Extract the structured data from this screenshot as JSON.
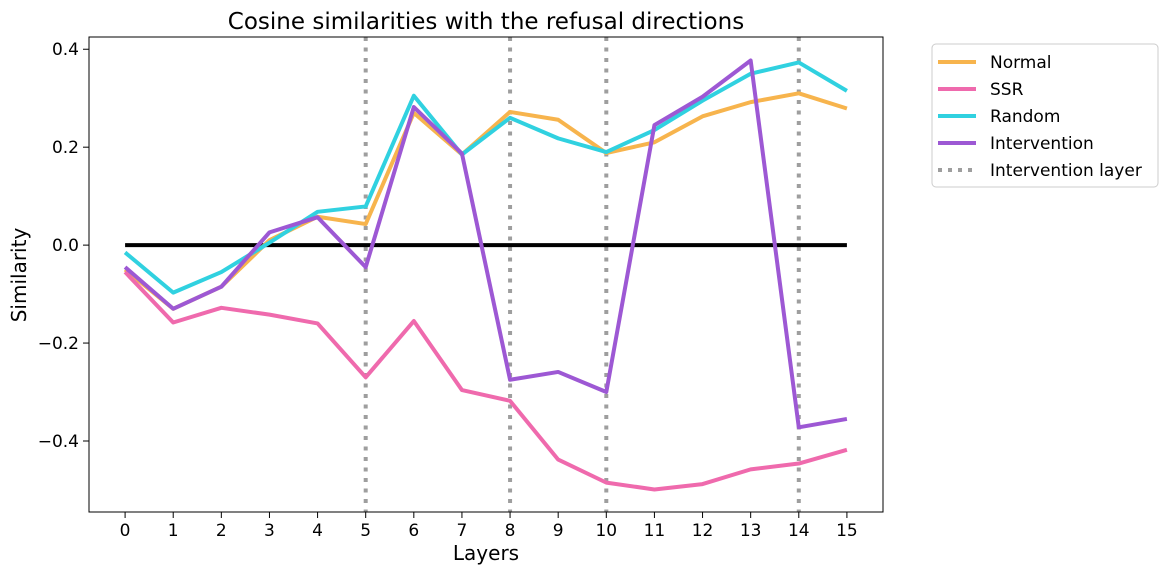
{
  "chart_data": {
    "type": "line",
    "title": "Cosine similarities with the refusal directions",
    "xlabel": "Layers",
    "ylabel": "Similarity",
    "x": [
      0,
      1,
      2,
      3,
      4,
      5,
      6,
      7,
      8,
      9,
      10,
      11,
      12,
      13,
      14,
      15
    ],
    "xlim": [
      -0.75,
      15.75
    ],
    "ylim": [
      -0.545,
      0.425
    ],
    "yticks": [
      -0.4,
      -0.2,
      0.0,
      0.2,
      0.4
    ],
    "ytick_labels": [
      "−0.4",
      "−0.2",
      "0.0",
      "0.2",
      "0.4"
    ],
    "grid": false,
    "legend_position": "outside top-right",
    "series": [
      {
        "name": "Normal",
        "color": "#f7b44d",
        "values": [
          -0.05,
          -0.13,
          -0.085,
          0.01,
          0.058,
          0.043,
          0.27,
          0.185,
          0.272,
          0.256,
          0.188,
          0.21,
          0.263,
          0.292,
          0.31,
          0.279
        ]
      },
      {
        "name": "SSR",
        "color": "#ef6aad",
        "values": [
          -0.055,
          -0.158,
          -0.128,
          -0.142,
          -0.16,
          -0.27,
          -0.155,
          -0.296,
          -0.318,
          -0.438,
          -0.485,
          -0.499,
          -0.488,
          -0.458,
          -0.446,
          -0.418
        ]
      },
      {
        "name": "Random",
        "color": "#30d1e0",
        "values": [
          -0.015,
          -0.097,
          -0.055,
          0.005,
          0.068,
          0.079,
          0.305,
          0.185,
          0.26,
          0.218,
          0.19,
          0.235,
          0.295,
          0.35,
          0.373,
          0.315
        ]
      },
      {
        "name": "Intervention",
        "color": "#9d58d4",
        "values": [
          -0.045,
          -0.13,
          -0.085,
          0.026,
          0.057,
          -0.045,
          0.282,
          0.187,
          -0.275,
          -0.259,
          -0.3,
          0.245,
          0.303,
          0.377,
          -0.372,
          -0.355
        ]
      }
    ],
    "zero_line": {
      "value": 0.0,
      "from_x": 0,
      "to_x": 15,
      "color": "#000000"
    },
    "intervention_layers": {
      "name": "Intervention layer",
      "color": "#9e9e9e",
      "x": [
        5,
        8,
        10,
        14
      ]
    }
  }
}
